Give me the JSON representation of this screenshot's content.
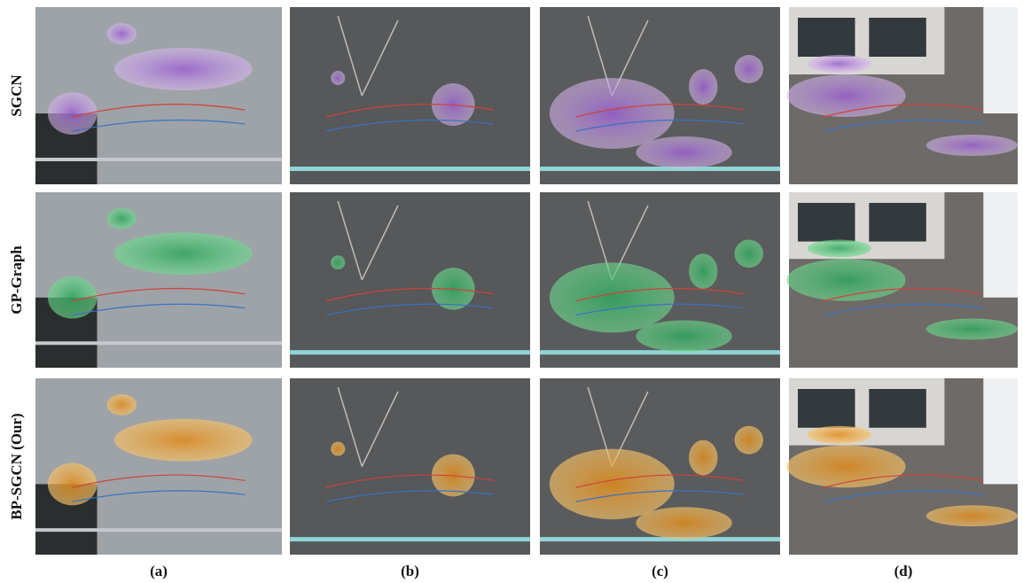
{
  "figure": {
    "rows": [
      "SGCN",
      "GP-Graph",
      "BP-SGCN (Our)"
    ],
    "columns": [
      "(a)",
      "(b)",
      "(c)",
      "(d)"
    ]
  }
}
